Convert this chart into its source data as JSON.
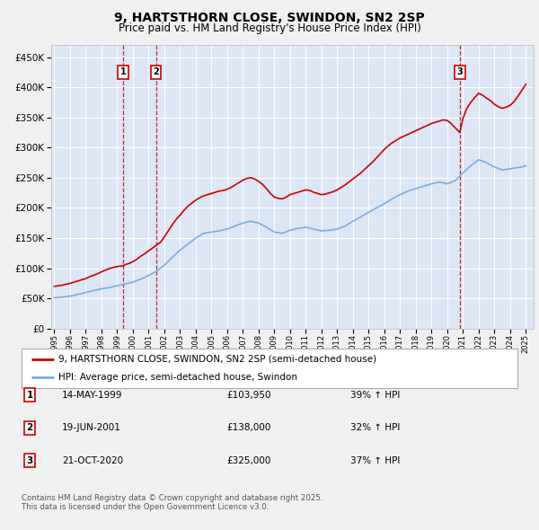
{
  "title": "9, HARTSTHORN CLOSE, SWINDON, SN2 2SP",
  "subtitle": "Price paid vs. HM Land Registry's House Price Index (HPI)",
  "ytick_values": [
    0,
    50000,
    100000,
    150000,
    200000,
    250000,
    300000,
    350000,
    400000,
    450000
  ],
  "ylim": [
    0,
    470000
  ],
  "xlim_start": 1994.8,
  "xlim_end": 2025.5,
  "background_color": "#f0f0f0",
  "plot_bg_color": "#dce6f5",
  "grid_color": "#ffffff",
  "legend_label_red": "9, HARTSTHORN CLOSE, SWINDON, SN2 2SP (semi-detached house)",
  "legend_label_blue": "HPI: Average price, semi-detached house, Swindon",
  "red_color": "#cc0000",
  "blue_color": "#7aade0",
  "purchase_markers": [
    {
      "num": 1,
      "year": 1999.37,
      "price": 103950,
      "label": "1",
      "date": "14-MAY-1999",
      "amount": "£103,950",
      "pct": "39% ↑ HPI"
    },
    {
      "num": 2,
      "year": 2001.47,
      "price": 138000,
      "label": "2",
      "date": "19-JUN-2001",
      "amount": "£138,000",
      "pct": "32% ↑ HPI"
    },
    {
      "num": 3,
      "year": 2020.8,
      "price": 325000,
      "label": "3",
      "date": "21-OCT-2020",
      "amount": "£325,000",
      "pct": "37% ↑ HPI"
    }
  ],
  "footnote": "Contains HM Land Registry data © Crown copyright and database right 2025.\nThis data is licensed under the Open Government Licence v3.0.",
  "hpi_data": {
    "years": [
      1995.0,
      1995.25,
      1995.5,
      1995.75,
      1996.0,
      1996.25,
      1996.5,
      1996.75,
      1997.0,
      1997.25,
      1997.5,
      1997.75,
      1998.0,
      1998.25,
      1998.5,
      1998.75,
      1999.0,
      1999.25,
      1999.5,
      1999.75,
      2000.0,
      2000.25,
      2000.5,
      2000.75,
      2001.0,
      2001.25,
      2001.5,
      2001.75,
      2002.0,
      2002.25,
      2002.5,
      2002.75,
      2003.0,
      2003.25,
      2003.5,
      2003.75,
      2004.0,
      2004.25,
      2004.5,
      2004.75,
      2005.0,
      2005.25,
      2005.5,
      2005.75,
      2006.0,
      2006.25,
      2006.5,
      2006.75,
      2007.0,
      2007.25,
      2007.5,
      2007.75,
      2008.0,
      2008.25,
      2008.5,
      2008.75,
      2009.0,
      2009.25,
      2009.5,
      2009.75,
      2010.0,
      2010.25,
      2010.5,
      2010.75,
      2011.0,
      2011.25,
      2011.5,
      2011.75,
      2012.0,
      2012.25,
      2012.5,
      2012.75,
      2013.0,
      2013.25,
      2013.5,
      2013.75,
      2014.0,
      2014.25,
      2014.5,
      2014.75,
      2015.0,
      2015.25,
      2015.5,
      2015.75,
      2016.0,
      2016.25,
      2016.5,
      2016.75,
      2017.0,
      2017.25,
      2017.5,
      2017.75,
      2018.0,
      2018.25,
      2018.5,
      2018.75,
      2019.0,
      2019.25,
      2019.5,
      2019.75,
      2020.0,
      2020.25,
      2020.5,
      2020.75,
      2021.0,
      2021.25,
      2021.5,
      2021.75,
      2022.0,
      2022.25,
      2022.5,
      2022.75,
      2023.0,
      2023.25,
      2023.5,
      2023.75,
      2024.0,
      2024.25,
      2024.5,
      2024.75,
      2025.0
    ],
    "values": [
      51000,
      51500,
      52000,
      53000,
      54000,
      55000,
      57000,
      58000,
      60000,
      61500,
      63000,
      64500,
      66000,
      67000,
      68000,
      69500,
      71000,
      72500,
      74000,
      75500,
      77000,
      79500,
      82000,
      85000,
      88000,
      91500,
      95000,
      100000,
      105000,
      111500,
      118000,
      124000,
      130000,
      135000,
      140000,
      145000,
      150000,
      154000,
      158000,
      159000,
      160000,
      161000,
      162000,
      163500,
      165000,
      167500,
      170000,
      172500,
      175000,
      176500,
      178000,
      176500,
      175000,
      171500,
      168000,
      164000,
      160000,
      159000,
      158000,
      160500,
      163000,
      164500,
      166000,
      167000,
      168000,
      166500,
      165000,
      163500,
      162000,
      162500,
      163000,
      164000,
      165000,
      167500,
      170000,
      174000,
      178000,
      181500,
      185000,
      189000,
      193000,
      196500,
      200000,
      203500,
      207000,
      211000,
      215000,
      218500,
      222000,
      225000,
      228000,
      230000,
      232000,
      234000,
      236000,
      238000,
      240000,
      241500,
      243000,
      241500,
      240000,
      242500,
      245000,
      251500,
      258000,
      264000,
      270000,
      275000,
      280000,
      277500,
      275000,
      271500,
      268000,
      265500,
      263000,
      264000,
      265000,
      266000,
      267000,
      268000,
      270000
    ]
  },
  "price_data": {
    "years": [
      1995.0,
      1995.25,
      1995.5,
      1995.75,
      1996.0,
      1996.25,
      1996.5,
      1996.75,
      1997.0,
      1997.25,
      1997.5,
      1997.75,
      1998.0,
      1998.25,
      1998.5,
      1998.75,
      1999.0,
      1999.37,
      1999.5,
      1999.75,
      2000.0,
      2000.25,
      2000.5,
      2000.75,
      2001.0,
      2001.25,
      2001.47,
      2001.75,
      2002.0,
      2002.25,
      2002.5,
      2002.75,
      2003.0,
      2003.25,
      2003.5,
      2003.75,
      2004.0,
      2004.25,
      2004.5,
      2004.75,
      2005.0,
      2005.25,
      2005.5,
      2005.75,
      2006.0,
      2006.25,
      2006.5,
      2006.75,
      2007.0,
      2007.25,
      2007.5,
      2007.75,
      2008.0,
      2008.25,
      2008.5,
      2008.75,
      2009.0,
      2009.25,
      2009.5,
      2009.75,
      2010.0,
      2010.25,
      2010.5,
      2010.75,
      2011.0,
      2011.25,
      2011.5,
      2011.75,
      2012.0,
      2012.25,
      2012.5,
      2012.75,
      2013.0,
      2013.25,
      2013.5,
      2013.75,
      2014.0,
      2014.25,
      2014.5,
      2014.75,
      2015.0,
      2015.25,
      2015.5,
      2015.75,
      2016.0,
      2016.25,
      2016.5,
      2016.75,
      2017.0,
      2017.25,
      2017.5,
      2017.75,
      2018.0,
      2018.25,
      2018.5,
      2018.75,
      2019.0,
      2019.25,
      2019.5,
      2019.75,
      2020.0,
      2020.25,
      2020.5,
      2020.8,
      2021.0,
      2021.25,
      2021.5,
      2021.75,
      2022.0,
      2022.25,
      2022.5,
      2022.75,
      2023.0,
      2023.25,
      2023.5,
      2023.75,
      2024.0,
      2024.25,
      2024.5,
      2024.75,
      2025.0
    ],
    "values": [
      70000,
      71000,
      72000,
      73500,
      75000,
      77000,
      79000,
      81000,
      83000,
      86000,
      88500,
      91000,
      94000,
      97000,
      99500,
      101500,
      103000,
      103950,
      106000,
      108000,
      111000,
      115000,
      120000,
      124000,
      129000,
      133500,
      138000,
      143000,
      152000,
      162000,
      172000,
      181000,
      188000,
      196000,
      203000,
      208000,
      213000,
      217000,
      220000,
      222000,
      224000,
      226000,
      228000,
      229000,
      231000,
      234000,
      238000,
      242000,
      246000,
      249000,
      250000,
      248000,
      244000,
      239000,
      232000,
      224000,
      218000,
      216000,
      215000,
      218000,
      222000,
      224000,
      226000,
      228000,
      230000,
      229000,
      226000,
      224000,
      222000,
      223000,
      225000,
      227000,
      230000,
      234000,
      238000,
      243000,
      248000,
      253000,
      258000,
      264000,
      270000,
      276000,
      283000,
      290000,
      297000,
      303000,
      308000,
      312000,
      316000,
      319000,
      322000,
      325000,
      328000,
      331000,
      334000,
      337000,
      340000,
      342000,
      344000,
      346000,
      345000,
      340000,
      333000,
      325000,
      348000,
      365000,
      375000,
      383000,
      390000,
      387000,
      382000,
      378000,
      372000,
      368000,
      365000,
      367000,
      370000,
      376000,
      385000,
      395000,
      405000
    ]
  }
}
